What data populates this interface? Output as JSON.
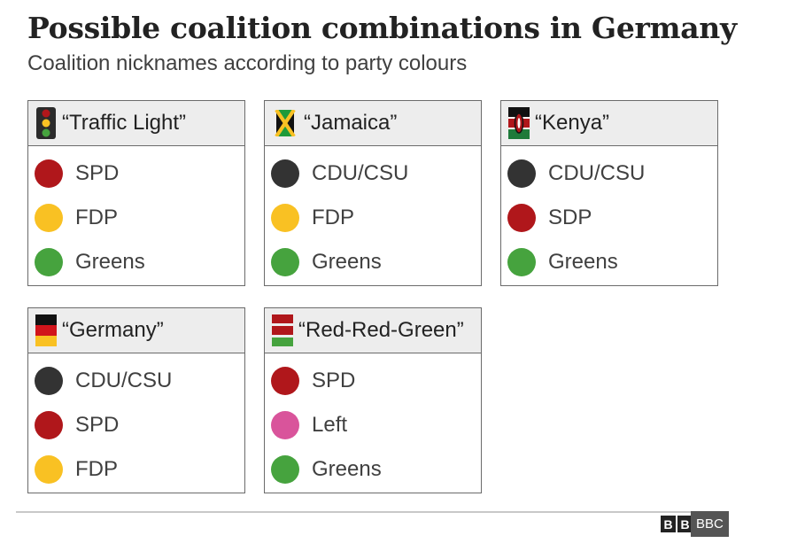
{
  "title": "Possible coalition combinations in Germany",
  "subtitle": "Coalition nicknames according to party colours",
  "coalitions": [
    {
      "name": "“Traffic Light”",
      "flag_icon": "traffic-light-icon",
      "parties": [
        {
          "name": "SPD",
          "color": "#b0171b"
        },
        {
          "name": "FDP",
          "color": "#f9c123"
        },
        {
          "name": "Greens",
          "color": "#46a33e"
        }
      ]
    },
    {
      "name": "“Jamaica”",
      "flag_icon": "jamaica-flag-icon",
      "parties": [
        {
          "name": "CDU/CSU",
          "color": "#333333"
        },
        {
          "name": "FDP",
          "color": "#f9c123"
        },
        {
          "name": "Greens",
          "color": "#46a33e"
        }
      ]
    },
    {
      "name": "“Kenya”",
      "flag_icon": "kenya-flag-icon",
      "parties": [
        {
          "name": "CDU/CSU",
          "color": "#333333"
        },
        {
          "name": "SDP",
          "color": "#b0171b"
        },
        {
          "name": "Greens",
          "color": "#46a33e"
        }
      ]
    },
    {
      "name": "“Germany”",
      "flag_icon": "germany-flag-icon",
      "parties": [
        {
          "name": "CDU/CSU",
          "color": "#333333"
        },
        {
          "name": "SPD",
          "color": "#b0171b"
        },
        {
          "name": "FDP",
          "color": "#f9c123"
        }
      ]
    },
    {
      "name": "“Red-Red-Green”",
      "flag_icon": "red-red-green-flag-icon",
      "parties": [
        {
          "name": "SPD",
          "color": "#b0171b"
        },
        {
          "name": "Left",
          "color": "#d9549b"
        },
        {
          "name": "Greens",
          "color": "#46a33e"
        }
      ]
    }
  ],
  "footer": {
    "logo_blocks": [
      "B",
      "B"
    ],
    "badge": "BBC"
  }
}
